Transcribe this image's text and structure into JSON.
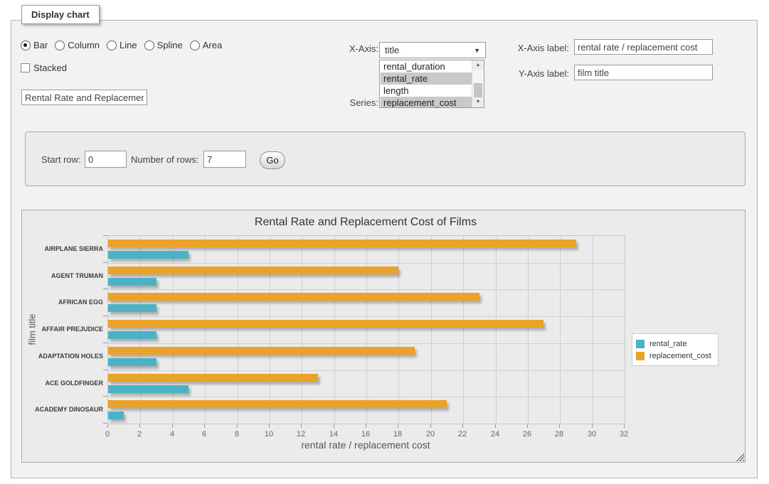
{
  "panel": {
    "title": "Display chart"
  },
  "controls": {
    "chart_type": {
      "options": [
        "Bar",
        "Column",
        "Line",
        "Spline",
        "Area"
      ],
      "selected": "Bar"
    },
    "stacked": {
      "label": "Stacked",
      "checked": false
    },
    "chart_title_input": {
      "value": "Rental Rate and Replacement Cost of Films"
    },
    "x_axis": {
      "label": "X-Axis:",
      "selected": "title"
    },
    "series": {
      "label": "Series:",
      "options": [
        {
          "label": "rental_duration",
          "selected": false
        },
        {
          "label": "rental_rate",
          "selected": true
        },
        {
          "label": "length",
          "selected": false
        },
        {
          "label": "replacement_cost",
          "selected": true
        }
      ]
    },
    "x_axis_label": {
      "label": "X-Axis label:",
      "value": "rental rate / replacement cost"
    },
    "y_axis_label": {
      "label": "Y-Axis label:",
      "value": "film title"
    },
    "rows": {
      "start_row_label": "Start row:",
      "start_row_value": "0",
      "num_rows_label": "Number of rows:",
      "num_rows_value": "7",
      "go_label": "Go"
    }
  },
  "chart_data": {
    "type": "bar",
    "orientation": "horizontal",
    "title": "Rental Rate and Replacement Cost of Films",
    "xlabel": "rental rate / replacement cost",
    "ylabel": "film title",
    "categories": [
      "AIRPLANE SIERRA",
      "AGENT TRUMAN",
      "AFRICAN EGG",
      "AFFAIR PREJUDICE",
      "ADAPTATION HOLES",
      "ACE GOLDFINGER",
      "ACADEMY DINOSAUR"
    ],
    "series": [
      {
        "name": "replacement_cost",
        "color": "#EAA228",
        "values": [
          28.99,
          17.99,
          22.99,
          26.99,
          18.99,
          12.99,
          20.99
        ]
      },
      {
        "name": "rental_rate",
        "color": "#4bb2c5",
        "values": [
          4.99,
          2.99,
          2.99,
          2.99,
          2.99,
          4.99,
          0.99
        ]
      }
    ],
    "legend": [
      {
        "name": "rental_rate",
        "color": "#4bb2c5"
      },
      {
        "name": "replacement_cost",
        "color": "#EAA228"
      }
    ],
    "xlim": [
      0,
      32
    ],
    "xticks": [
      0,
      2,
      4,
      6,
      8,
      10,
      12,
      14,
      16,
      18,
      20,
      22,
      24,
      26,
      28,
      30,
      32
    ],
    "grid": true,
    "legend_position": "right"
  }
}
